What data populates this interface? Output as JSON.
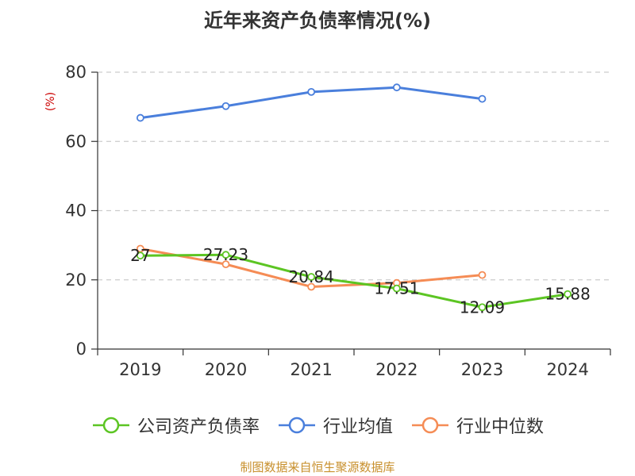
{
  "title": "近年来资产负债率情况(%)",
  "source": "制图数据来自恒生聚源数据库",
  "colors": {
    "company": "#5cc523",
    "industry_avg": "#4a7fdc",
    "industry_median": "#f58c55",
    "ylabel": "#cc0000",
    "source": "#c8902d"
  },
  "chart_data": {
    "type": "line",
    "title": "近年来资产负债率情况(%)",
    "xlabel": "",
    "ylabel": "(%)",
    "ylim": [
      0,
      80
    ],
    "yticks": [
      "0",
      "20",
      "40",
      "60",
      "80"
    ],
    "categories": [
      "2019",
      "2020",
      "2021",
      "2022",
      "2023",
      "2024"
    ],
    "grid": "horizontal dashed",
    "legend_position": "bottom",
    "series": [
      {
        "name": "公司资产负债率",
        "values": [
          27,
          27.23,
          20.84,
          17.51,
          12.09,
          15.88
        ],
        "labels": [
          "27",
          "27.23",
          "20.84",
          "17.51",
          "12.09",
          "15.88"
        ]
      },
      {
        "name": "行业均值",
        "values": [
          66.8,
          70.2,
          74.3,
          75.6,
          72.3,
          null
        ]
      },
      {
        "name": "行业中位数",
        "values": [
          29,
          24.5,
          18.0,
          19.1,
          21.4,
          null
        ]
      }
    ]
  }
}
